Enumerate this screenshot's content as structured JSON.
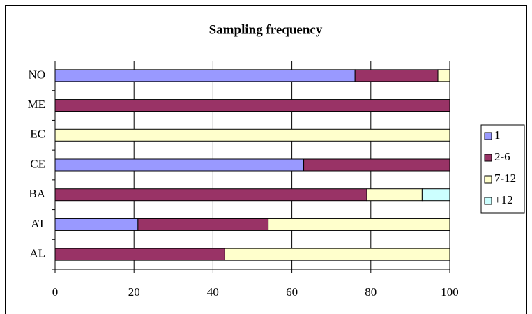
{
  "chart_data": {
    "type": "stacked-barh",
    "title": "Sampling frequency",
    "categories": [
      "AL",
      "AT",
      "BA",
      "CE",
      "EC",
      "ME",
      "NO"
    ],
    "series": [
      {
        "name": "1",
        "color": "#9999ff",
        "values": [
          0,
          21,
          0,
          63,
          0,
          0,
          76
        ]
      },
      {
        "name": "2-6",
        "color": "#993366",
        "values": [
          43,
          33,
          79,
          37,
          0,
          100,
          21
        ]
      },
      {
        "name": "7-12",
        "color": "#ffffcc",
        "values": [
          57,
          46,
          14,
          0,
          100,
          0,
          3
        ]
      },
      {
        "name": "+12",
        "color": "#ccffff",
        "values": [
          0,
          0,
          7,
          0,
          0,
          0,
          0
        ]
      }
    ],
    "xlim": [
      0,
      100
    ],
    "xticks": [
      0,
      20,
      40,
      60,
      80,
      100
    ],
    "grid": true,
    "legend": "right"
  }
}
